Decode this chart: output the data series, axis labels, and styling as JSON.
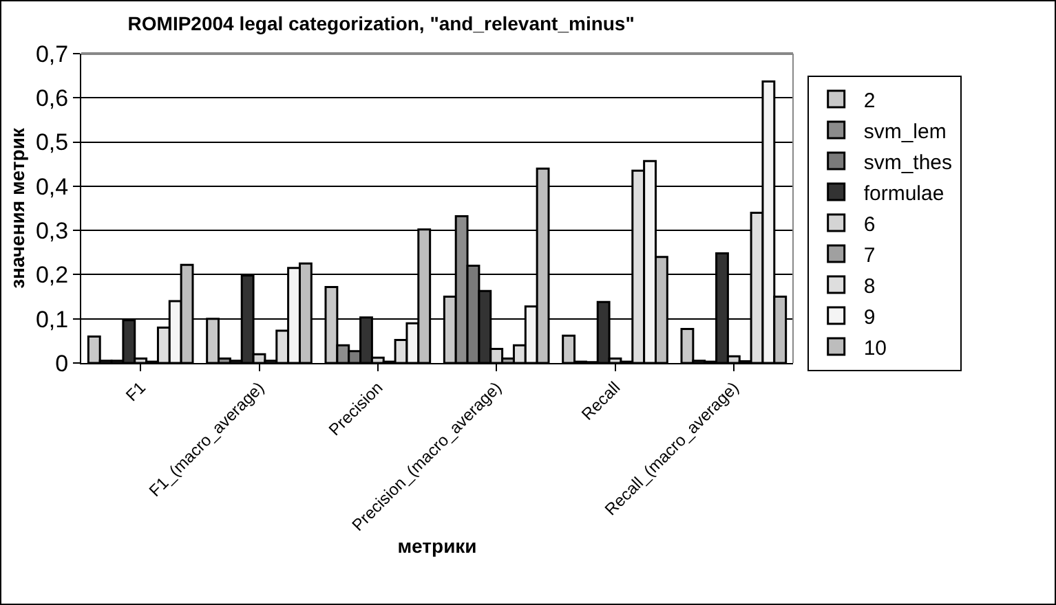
{
  "chart_data": {
    "type": "bar",
    "title": "ROMIP2004 legal categorization, \"and_relevant_minus\"",
    "xlabel": "метрики",
    "ylabel": "значения метрик",
    "categories": [
      "F1",
      "F1_(macro_average)",
      "Precision",
      "Precision_(macro_average)",
      "Recall",
      "Recall_(macro_average)"
    ],
    "series": [
      {
        "name": "2",
        "color": "#c8c8c8",
        "values": [
          0.06,
          0.1,
          0.172,
          0.15,
          0.062,
          0.077
        ]
      },
      {
        "name": "svm_lem",
        "color": "#8c8c8c",
        "values": [
          0.005,
          0.01,
          0.04,
          0.332,
          0.003,
          0.005
        ]
      },
      {
        "name": "svm_thes",
        "color": "#7a7a7a",
        "values": [
          0.005,
          0.005,
          0.027,
          0.22,
          0.002,
          0.003
        ]
      },
      {
        "name": "formulae",
        "color": "#333333",
        "values": [
          0.097,
          0.198,
          0.103,
          0.163,
          0.138,
          0.248
        ]
      },
      {
        "name": "6",
        "color": "#d4d4d4",
        "values": [
          0.01,
          0.02,
          0.012,
          0.032,
          0.01,
          0.015
        ]
      },
      {
        "name": "7",
        "color": "#a0a0a0",
        "values": [
          0.003,
          0.005,
          0.003,
          0.01,
          0.003,
          0.004
        ]
      },
      {
        "name": "8",
        "color": "#dedede",
        "values": [
          0.08,
          0.073,
          0.052,
          0.04,
          0.435,
          0.34
        ]
      },
      {
        "name": "9",
        "color": "#f4f4f4",
        "values": [
          0.14,
          0.215,
          0.09,
          0.128,
          0.457,
          0.637
        ]
      },
      {
        "name": "10",
        "color": "#bdbdbd",
        "values": [
          0.222,
          0.225,
          0.302,
          0.44,
          0.24,
          0.15
        ]
      }
    ],
    "ylim": [
      0,
      0.7
    ],
    "yticks": [
      0,
      {
        "value": 0.1,
        "label": "0,1"
      },
      {
        "value": 0.2,
        "label": "0,2"
      },
      {
        "value": 0.3,
        "label": "0,3"
      },
      {
        "value": 0.4,
        "label": "0,4"
      },
      {
        "value": 0.5,
        "label": "0,5"
      },
      {
        "value": 0.6,
        "label": "0,6"
      },
      {
        "value": 0.7,
        "label": "0,7"
      }
    ],
    "grid": "y",
    "legend": "right"
  }
}
